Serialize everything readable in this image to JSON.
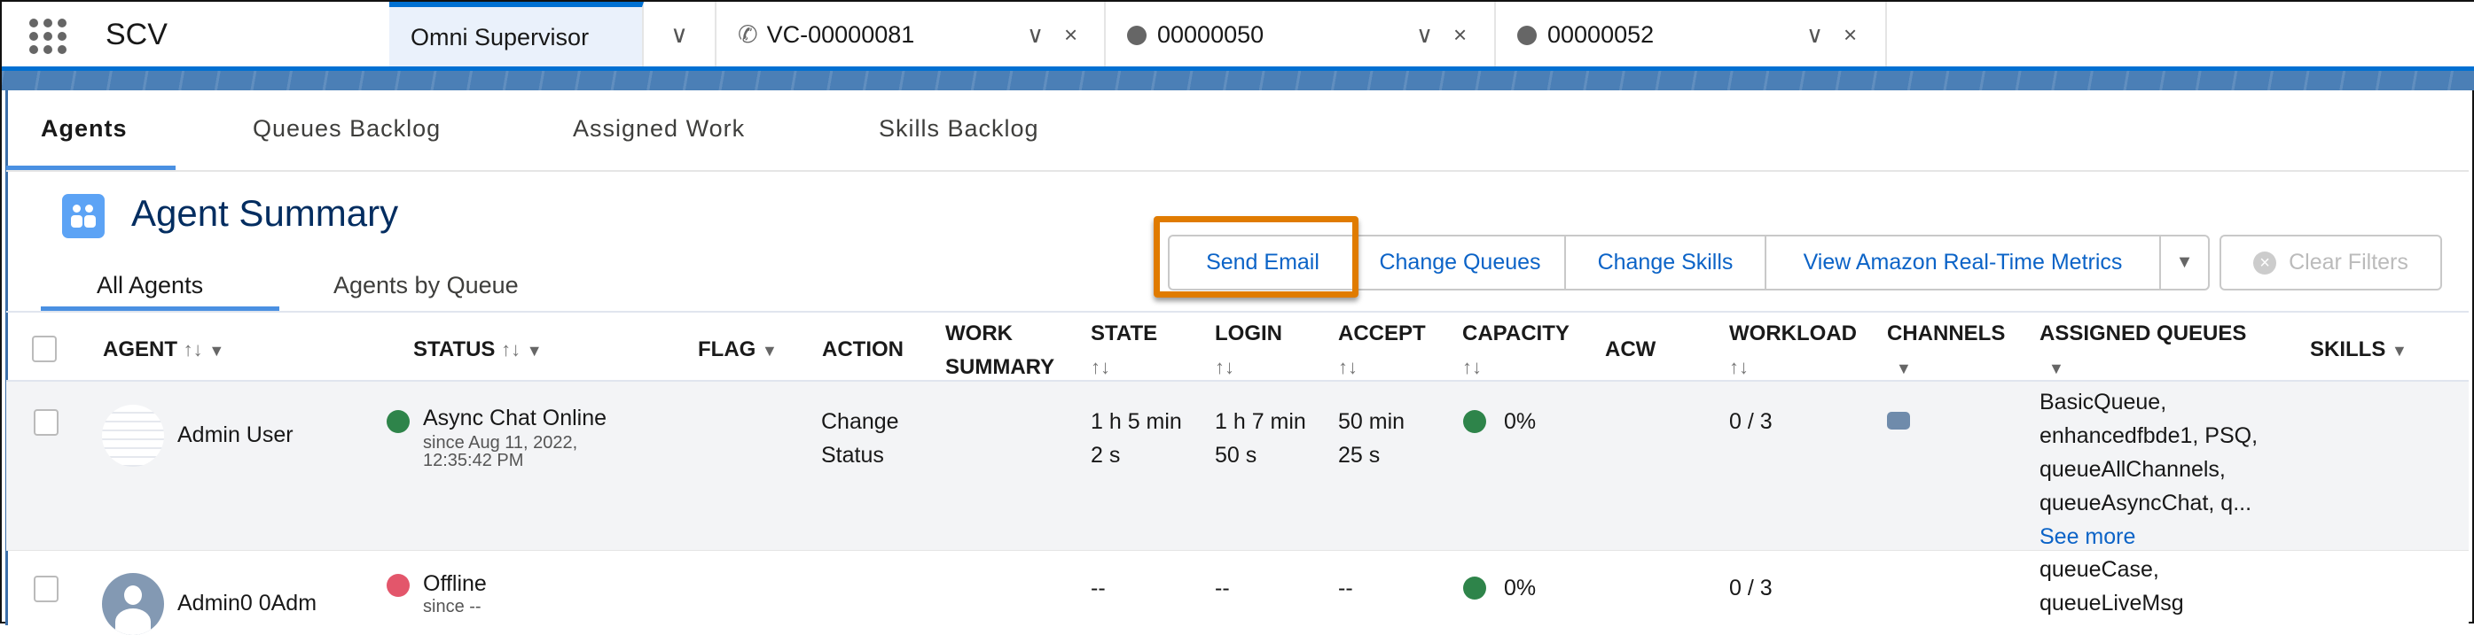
{
  "app": {
    "name": "SCV",
    "launcher_icon": "app-launcher-grid-icon"
  },
  "tabs": [
    {
      "label": "Omni Supervisor",
      "icon": "",
      "active": true
    },
    {
      "label": "VC-00000081",
      "icon": "phone-icon"
    },
    {
      "label": "00000050",
      "icon": "chat-icon"
    },
    {
      "label": "00000052",
      "icon": "chat-icon"
    }
  ],
  "main_tabs": [
    "Agents",
    "Queues Backlog",
    "Assigned Work",
    "Skills Backlog"
  ],
  "summary": {
    "title": "Agent Summary",
    "sub_tabs": [
      "All Agents",
      "Agents by Queue"
    ]
  },
  "actions": {
    "send_email": "Send Email",
    "change_queues": "Change Queues",
    "change_skills": "Change Skills",
    "view_metrics": "View Amazon Real-Time Metrics",
    "clear_filters": "Clear Filters"
  },
  "colors": {
    "accent": "#0070d2",
    "highlight": "#e07b00",
    "online": "#2e844a",
    "offline": "#e3566b"
  },
  "columns": {
    "agent": "AGENT",
    "status": "STATUS",
    "flag": "FLAG",
    "action": "ACTION",
    "work_summary_1": "WORK",
    "work_summary_2": "SUMMARY",
    "state": "STATE",
    "login": "LOGIN",
    "accept": "ACCEPT",
    "capacity": "CAPACITY",
    "acw": "ACW",
    "workload": "WORKLOAD",
    "channels": "CHANNELS",
    "assigned_queues": "ASSIGNED QUEUES",
    "skills": "SKILLS"
  },
  "rows": [
    {
      "agent": "Admin User",
      "status": "Async Chat Online",
      "since": "since  Aug 11, 2022,",
      "since2": "12:35:42 PM",
      "action1": "Change",
      "action2": "Status",
      "state1": "1 h 5 min",
      "state2": "2 s",
      "login1": "1 h 7 min",
      "login2": "50 s",
      "accept1": "50 min",
      "accept2": "25 s",
      "capacity": "0%",
      "workload": "0 / 3",
      "channel_icon": "chat-bubble-icon",
      "queues": [
        "BasicQueue,",
        "enhancedfbde1, PSQ,",
        "queueAllChannels,",
        "queueAsyncChat, q..."
      ],
      "see_more": "See more"
    },
    {
      "agent": "Admin0 0Adm",
      "status": "Offline",
      "since": "since  --",
      "state1": "--",
      "login1": "--",
      "accept1": "--",
      "capacity": "0%",
      "workload": "0 / 3",
      "queues": [
        "queueCase,",
        "queueLiveMsg"
      ]
    }
  ]
}
